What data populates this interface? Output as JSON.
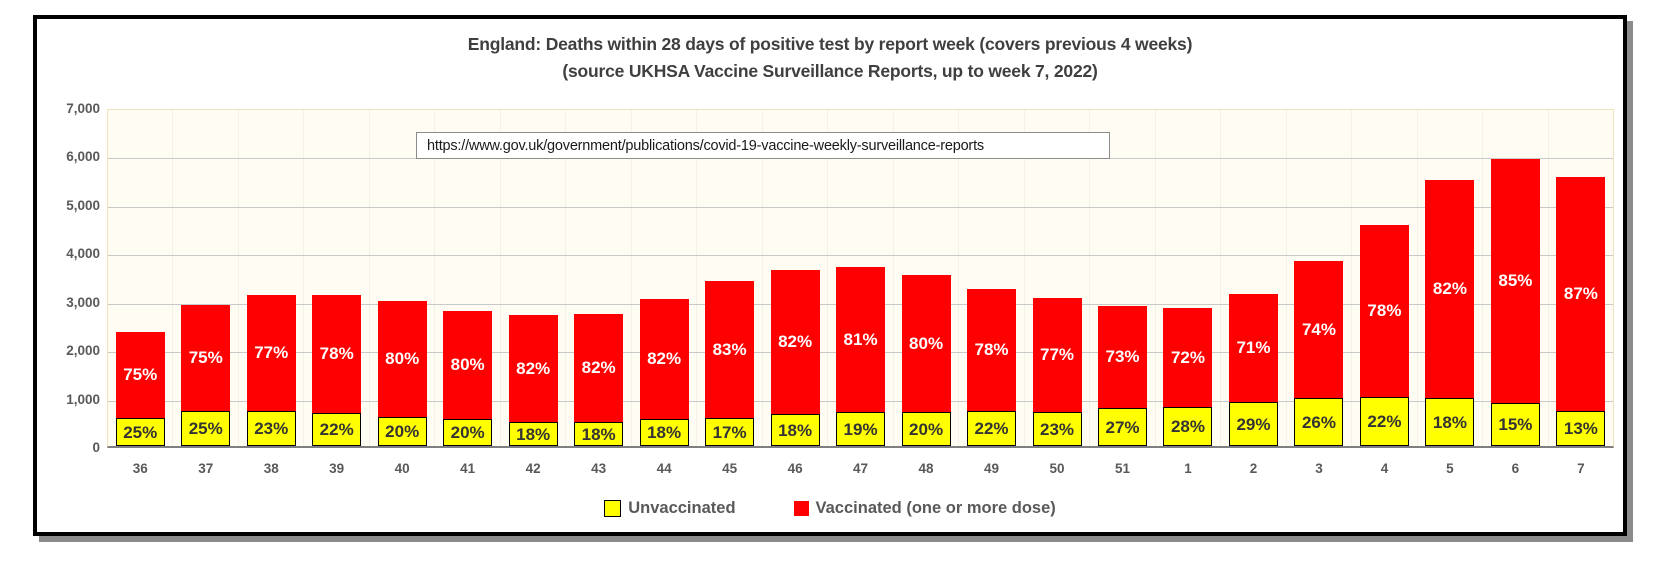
{
  "chart": {
    "title_line1": "England: Deaths within 28 days of positive test by report week (covers previous 4 weeks)",
    "title_line2": "(source UKHSA Vaccine Surveillance Reports, up to week 7, 2022)",
    "source_url": "https://www.gov.uk/government/publications/covid-19-vaccine-weekly-surveillance-reports"
  },
  "legend": {
    "unvaccinated": "Unvaccinated",
    "vaccinated": "Vaccinated (one or more dose)"
  },
  "colors": {
    "unvaccinated": "#FFFF00",
    "vaccinated": "#FF0000",
    "title_text": "#3F3F3F",
    "axis_text": "#595959",
    "plot_background": "#FFFDF3",
    "gridline": "#C9C9C9",
    "frame_border": "#000000"
  },
  "chart_data": {
    "type": "bar",
    "stacked": true,
    "title": "England: Deaths within 28 days of positive test by report week (covers previous 4 weeks)",
    "subtitle": "(source UKHSA Vaccine Surveillance Reports, up to week 7, 2022)",
    "annotation": "https://www.gov.uk/government/publications/covid-19-vaccine-weekly-surveillance-reports",
    "xlabel": "",
    "ylabel": "",
    "ylim": [
      0,
      7000
    ],
    "y_ticks": [
      "0",
      "1,000",
      "2,000",
      "3,000",
      "4,000",
      "5,000",
      "6,000",
      "7,000"
    ],
    "grid": true,
    "legend_position": "bottom",
    "categories": [
      "36",
      "37",
      "38",
      "39",
      "40",
      "41",
      "42",
      "43",
      "44",
      "45",
      "46",
      "47",
      "48",
      "49",
      "50",
      "51",
      "1",
      "2",
      "3",
      "4",
      "5",
      "6",
      "7"
    ],
    "totals_est": [
      2350,
      2920,
      3120,
      3120,
      2990,
      2780,
      2700,
      2730,
      3040,
      3400,
      3630,
      3690,
      3540,
      3250,
      3050,
      2900,
      2840,
      3140,
      3830,
      4570,
      5490,
      5920,
      5550
    ],
    "series": [
      {
        "name": "Unvaccinated",
        "color": "#FFFF00",
        "percent": [
          25,
          25,
          23,
          22,
          20,
          20,
          18,
          18,
          18,
          17,
          18,
          19,
          20,
          22,
          23,
          27,
          28,
          29,
          26,
          22,
          18,
          15,
          13
        ],
        "labels": [
          "25%",
          "25%",
          "23%",
          "22%",
          "20%",
          "20%",
          "18%",
          "18%",
          "18%",
          "17%",
          "18%",
          "19%",
          "20%",
          "22%",
          "23%",
          "27%",
          "28%",
          "29%",
          "26%",
          "22%",
          "18%",
          "15%",
          "13%"
        ],
        "values_est": [
          588,
          730,
          718,
          686,
          598,
          556,
          486,
          491,
          547,
          578,
          653,
          701,
          708,
          715,
          702,
          783,
          795,
          911,
          996,
          1005,
          988,
          888,
          722
        ]
      },
      {
        "name": "Vaccinated (one or more dose)",
        "color": "#FF0000",
        "percent": [
          75,
          75,
          77,
          78,
          80,
          80,
          82,
          82,
          82,
          83,
          82,
          81,
          80,
          78,
          77,
          73,
          72,
          71,
          74,
          78,
          82,
          85,
          87
        ],
        "labels": [
          "75%",
          "75%",
          "77%",
          "78%",
          "80%",
          "80%",
          "82%",
          "82%",
          "82%",
          "83%",
          "82%",
          "81%",
          "80%",
          "78%",
          "77%",
          "73%",
          "72%",
          "71%",
          "74%",
          "78%",
          "82%",
          "85%",
          "87%"
        ],
        "values_est": [
          1762,
          2190,
          2402,
          2434,
          2392,
          2224,
          2214,
          2239,
          2493,
          2822,
          2977,
          2989,
          2832,
          2535,
          2348,
          2117,
          2045,
          2229,
          2834,
          3565,
          4502,
          5032,
          4828
        ]
      }
    ]
  }
}
